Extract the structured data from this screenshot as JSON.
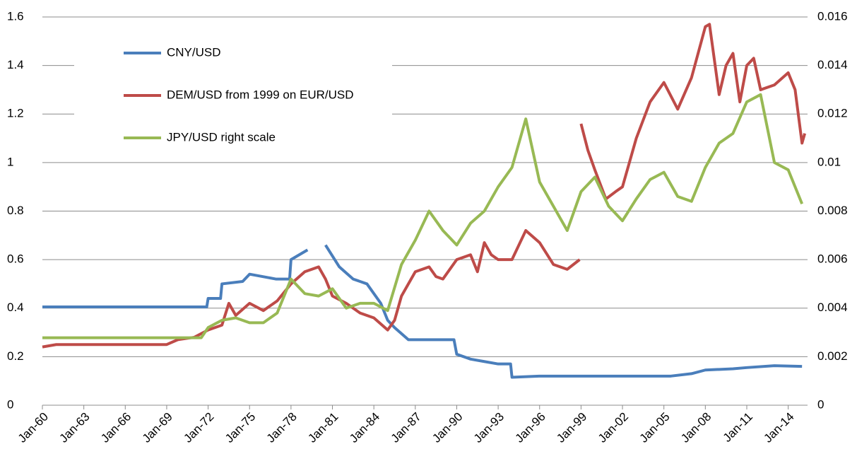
{
  "chart_data": {
    "type": "line",
    "xlim": [
      1960,
      2015.4
    ],
    "xticks": [
      {
        "value": 1960,
        "label": "Jan-60"
      },
      {
        "value": 1963,
        "label": "Jan-63"
      },
      {
        "value": 1966,
        "label": "Jan-66"
      },
      {
        "value": 1969,
        "label": "Jan-69"
      },
      {
        "value": 1972,
        "label": "Jan-72"
      },
      {
        "value": 1975,
        "label": "Jan-75"
      },
      {
        "value": 1978,
        "label": "Jan-78"
      },
      {
        "value": 1981,
        "label": "Jan-81"
      },
      {
        "value": 1984,
        "label": "Jan-84"
      },
      {
        "value": 1987,
        "label": "Jan-87"
      },
      {
        "value": 1990,
        "label": "Jan-90"
      },
      {
        "value": 1993,
        "label": "Jan-93"
      },
      {
        "value": 1996,
        "label": "Jan-96"
      },
      {
        "value": 1999,
        "label": "Jan-99"
      },
      {
        "value": 2002,
        "label": "Jan-02"
      },
      {
        "value": 2005,
        "label": "Jan-05"
      },
      {
        "value": 2008,
        "label": "Jan-08"
      },
      {
        "value": 2011,
        "label": "Jan-11"
      },
      {
        "value": 2014,
        "label": "Jan-14"
      }
    ],
    "ylim": [
      0,
      1.6
    ],
    "yticks": [
      0,
      0.2,
      0.4,
      0.6,
      0.8,
      1,
      1.2,
      1.4,
      1.6
    ],
    "y2lim": [
      0,
      0.016
    ],
    "y2ticks": [
      0,
      0.002,
      0.004,
      0.006,
      0.008,
      0.01,
      0.012,
      0.014,
      0.016
    ],
    "grid": true,
    "legend": "upper left",
    "series": [
      {
        "name": "CNY/USD",
        "color": "#4a7ebb",
        "x": [
          1960,
          1971.9,
          1972,
          1972.9,
          1973,
          1974.5,
          1975,
          1976.9,
          1977,
          1977.9,
          1978,
          1979.2,
          1979.8,
          1980.5,
          1981.5,
          1982.5,
          1983.5,
          1984.5,
          1985,
          1985.5,
          1986.5,
          1989.8,
          1990,
          1991,
          1992,
          1993,
          1993.9,
          1994,
          1996,
          2005.5,
          2007,
          2008,
          2010,
          2011,
          2013,
          2015
        ],
        "values": [
          0.405,
          0.405,
          0.44,
          0.44,
          0.5,
          0.51,
          0.54,
          0.52,
          0.52,
          0.52,
          0.6,
          0.64,
          null,
          0.66,
          0.57,
          0.52,
          0.5,
          0.42,
          0.35,
          0.32,
          0.27,
          0.27,
          0.21,
          0.19,
          0.18,
          0.17,
          0.17,
          0.115,
          0.12,
          0.12,
          0.13,
          0.145,
          0.15,
          0.155,
          0.163,
          0.16
        ]
      },
      {
        "name": "DEM/USD from 1999 on EUR/USD",
        "color": "#be4b48",
        "x": [
          1960,
          1961,
          1969,
          1969.8,
          1971,
          1972,
          1973,
          1973.5,
          1974,
          1975,
          1976,
          1977,
          1978,
          1979,
          1980,
          1980.5,
          1981,
          1982,
          1983,
          1984,
          1985,
          1985.5,
          1986,
          1987,
          1988,
          1988.5,
          1989,
          1990,
          1991,
          1991.5,
          1992,
          1992.5,
          1993,
          1994,
          1995,
          1996,
          1997,
          1998,
          1998.9,
          1998.95,
          1999,
          1999.5,
          2000,
          2000.8,
          2001.5,
          2002,
          2003,
          2004,
          2005,
          2006,
          2007,
          2008,
          2008.3,
          2009,
          2009.5,
          2010,
          2010.5,
          2011,
          2011.5,
          2012,
          2013,
          2014,
          2014.5,
          2015,
          2015.2
        ],
        "values": [
          0.24,
          0.25,
          0.25,
          0.27,
          0.28,
          0.31,
          0.33,
          0.42,
          0.37,
          0.42,
          0.39,
          0.43,
          0.5,
          0.55,
          0.57,
          0.52,
          0.45,
          0.42,
          0.38,
          0.36,
          0.31,
          0.35,
          0.45,
          0.55,
          0.57,
          0.53,
          0.52,
          0.6,
          0.62,
          0.55,
          0.67,
          0.62,
          0.6,
          0.6,
          0.72,
          0.67,
          0.58,
          0.56,
          0.6,
          null,
          1.16,
          1.05,
          0.97,
          0.85,
          0.88,
          0.9,
          1.1,
          1.25,
          1.33,
          1.22,
          1.35,
          1.56,
          1.57,
          1.28,
          1.4,
          1.45,
          1.25,
          1.4,
          1.43,
          1.3,
          1.32,
          1.37,
          1.3,
          1.08,
          1.12
        ]
      },
      {
        "name": "JPY/USD right scale",
        "color": "#98b954",
        "axis": "y2",
        "x": [
          1960,
          1971.5,
          1972,
          1973,
          1974,
          1975,
          1976,
          1977,
          1978,
          1979,
          1980,
          1981,
          1982,
          1983,
          1984,
          1985,
          1986,
          1987,
          1988,
          1989,
          1990,
          1991,
          1992,
          1993,
          1994,
          1995,
          1995.5,
          1996,
          1997,
          1998,
          1999,
          2000,
          2001,
          2002,
          2003,
          2004,
          2005,
          2006,
          2007,
          2008,
          2009,
          2010,
          2011,
          2012,
          2013,
          2014,
          2015
        ],
        "values": [
          0.00278,
          0.00278,
          0.0032,
          0.0035,
          0.0036,
          0.0034,
          0.0034,
          0.0038,
          0.0052,
          0.0046,
          0.0045,
          0.0048,
          0.004,
          0.0042,
          0.0042,
          0.0039,
          0.0058,
          0.0068,
          0.008,
          0.0072,
          0.0066,
          0.0075,
          0.008,
          0.009,
          0.0098,
          0.0118,
          0.0105,
          0.0092,
          0.0082,
          0.0072,
          0.0088,
          0.0094,
          0.0082,
          0.0076,
          0.0085,
          0.0093,
          0.0096,
          0.0086,
          0.0084,
          0.0098,
          0.0108,
          0.0112,
          0.0125,
          0.0128,
          0.01,
          0.0097,
          0.0083
        ]
      }
    ]
  }
}
